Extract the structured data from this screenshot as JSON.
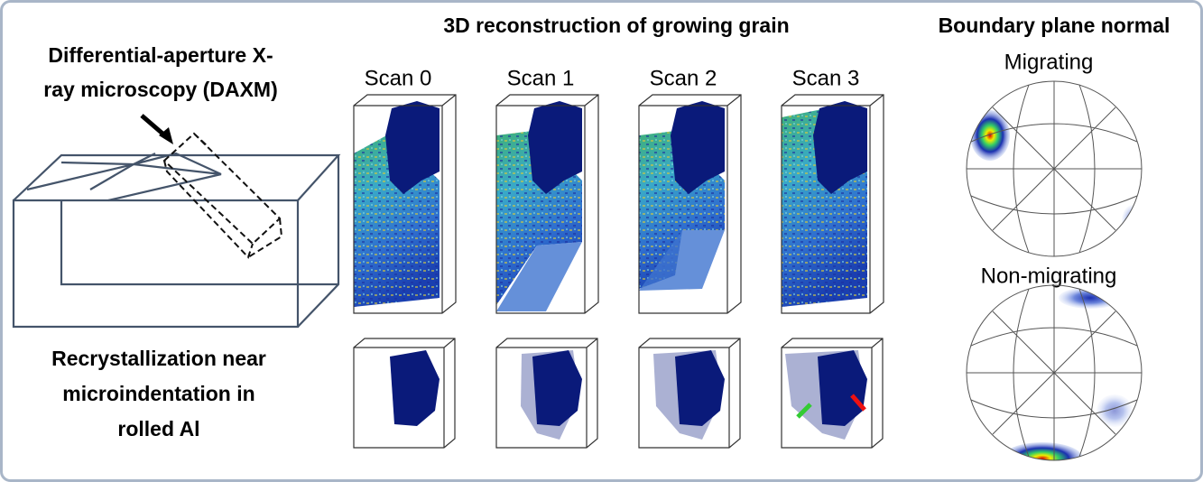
{
  "left": {
    "title": [
      "Differential-aperture X-",
      "ray microscopy (DAXM)"
    ],
    "caption": [
      "Recrystallization near",
      "microindentation in",
      "rolled Al"
    ]
  },
  "center": {
    "title": "3D reconstruction of growing grain",
    "scans": [
      "Scan 0",
      "Scan 1",
      "Scan 2",
      "Scan 3"
    ]
  },
  "right": {
    "title": "Boundary plane normal",
    "nets": [
      "Migrating",
      "Non-migrating"
    ]
  }
}
